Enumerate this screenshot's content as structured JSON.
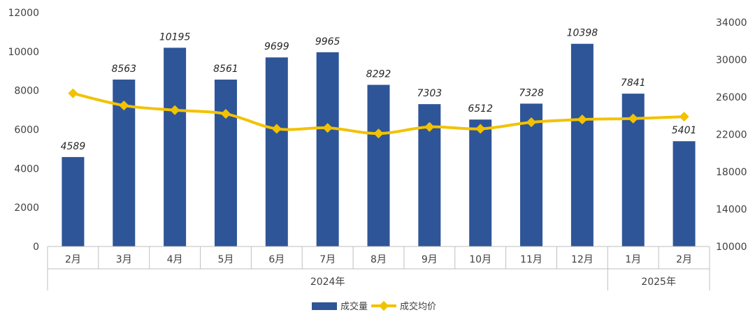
{
  "chart_data": {
    "type": "bar",
    "categories": [
      "2月",
      "3月",
      "4月",
      "5月",
      "6月",
      "7月",
      "8月",
      "9月",
      "10月",
      "11月",
      "12月",
      "1月",
      "2月"
    ],
    "groups": [
      {
        "label": "2024年",
        "count": 11
      },
      {
        "label": "2025年",
        "count": 2
      }
    ],
    "series": [
      {
        "name": "成交量",
        "type": "bar",
        "axis": "left",
        "color": "#2E5597",
        "values": [
          4589,
          8563,
          10195,
          8561,
          9699,
          9965,
          8292,
          7303,
          6512,
          7328,
          10398,
          7841,
          5401
        ],
        "labels": [
          "4589",
          "8563",
          "10195",
          "8561",
          "9699",
          "9965",
          "8292",
          "7303",
          "6512",
          "7328",
          "10398",
          "7841",
          "5401"
        ]
      },
      {
        "name": "成交均价",
        "type": "line",
        "axis": "right",
        "color": "#F2C200",
        "values": [
          26400,
          25100,
          24600,
          24200,
          22600,
          22700,
          22100,
          22800,
          22600,
          23300,
          23600,
          23700,
          23900
        ]
      }
    ],
    "y_left": {
      "min": 0,
      "max": 12000,
      "ticks": [
        "0",
        "2000",
        "4000",
        "6000",
        "8000",
        "10000",
        "12000"
      ]
    },
    "y_right": {
      "min": 10000,
      "max": 34000,
      "ticks": [
        "10000",
        "14000",
        "18000",
        "22000",
        "26000",
        "30000",
        "34000"
      ]
    },
    "legend": {
      "position": "bottom"
    },
    "grid": false
  }
}
